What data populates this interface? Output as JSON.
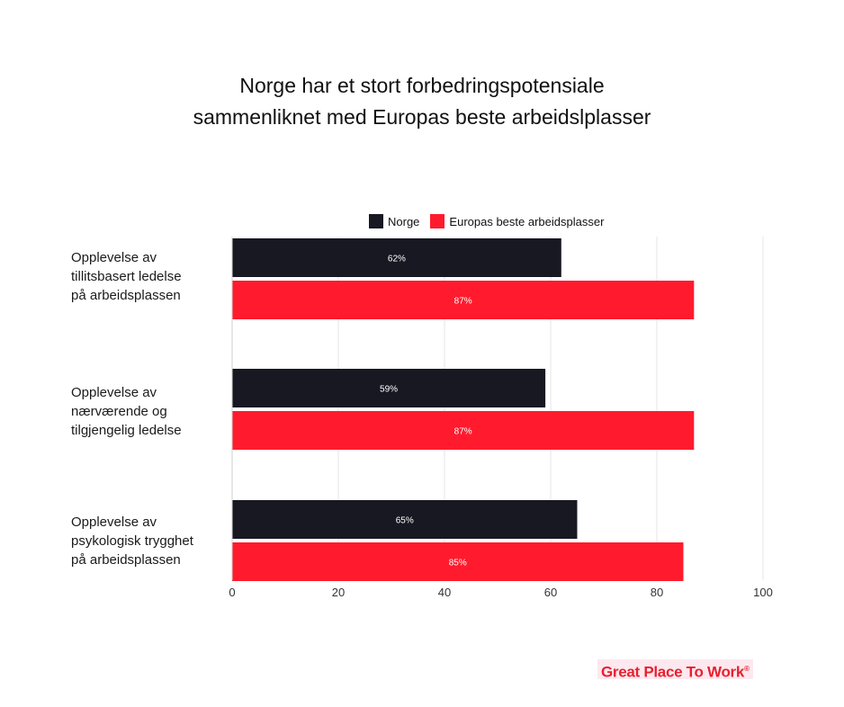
{
  "chart_data": {
    "type": "bar",
    "orientation": "horizontal",
    "title_lines": [
      "Norge har et stort forbedringspotensiale",
      "sammenliknet med Europas beste arbeidslplasser"
    ],
    "categories": [
      [
        "Opplevelse av",
        "tillitsbasert ledelse",
        "på arbeidsplassen"
      ],
      [
        "Opplevelse av",
        "nærværende og",
        "tilgjengelig ledelse"
      ],
      [
        "Opplevelse av",
        "psykologisk trygghet",
        "på arbeidsplassen"
      ]
    ],
    "series": [
      {
        "name": "Norge",
        "color": "#171821",
        "values": [
          62,
          59,
          65
        ],
        "labels": [
          "62%",
          "59%",
          "65%"
        ]
      },
      {
        "name": "Europas beste arbeidsplasser",
        "color": "#ff1b2d",
        "values": [
          87,
          87,
          85
        ],
        "labels": [
          "87%",
          "87%",
          "85%"
        ]
      }
    ],
    "xlim": [
      0,
      100
    ],
    "xticks": [
      0,
      20,
      40,
      60,
      80,
      100
    ],
    "grid": true,
    "legend_position": "top"
  },
  "logo": {
    "text": "Great Place To Work",
    "mark": "®"
  }
}
